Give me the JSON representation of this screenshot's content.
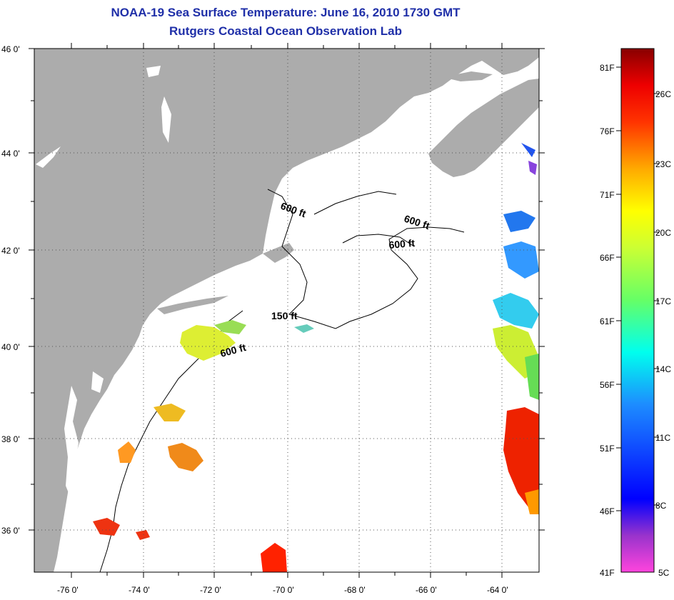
{
  "title": "NOAA-19 Sea Surface Temperature:  June 16, 2010 1730 GMT",
  "subtitle": "Rutgers Coastal Ocean Observation Lab",
  "lat_labels": [
    "46 0'",
    "44 0'",
    "42 0'",
    "40 0'",
    "38 0'",
    "36 0'"
  ],
  "lon_labels": [
    "-76 0'",
    "-74 0'",
    "-72 0'",
    "-70 0'",
    "-68 0'",
    "-66 0'",
    "-64 0'"
  ],
  "contours": [
    "600 ft",
    "600 ft",
    "600 ft",
    "150 ft",
    "600 ft"
  ],
  "colorbar": {
    "f_labels": [
      "81F",
      "76F",
      "71F",
      "66F",
      "61F",
      "56F",
      "51F",
      "46F",
      "41F"
    ],
    "c_labels": [
      "26C",
      "23C",
      "20C",
      "17C",
      "14C",
      "11C",
      "8C",
      "5C"
    ]
  },
  "colors": {
    "land": "#acacac",
    "ocean": "#ffffff",
    "title": "#1f2fa8"
  }
}
